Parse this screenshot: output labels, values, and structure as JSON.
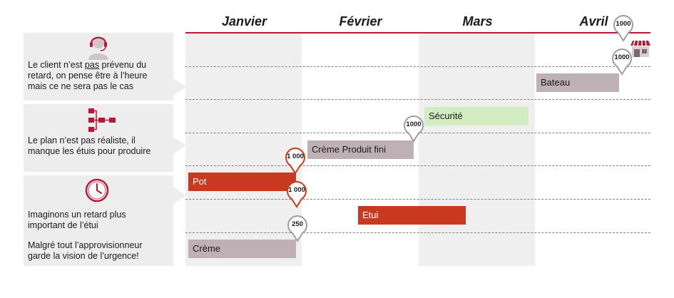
{
  "months": [
    "Janvier",
    "Février",
    "Mars",
    "Avril"
  ],
  "panels": [
    {
      "lines": [
        "Le client n’est pas prévenu du",
        "retard, on pense être à l’heure",
        "mais ce ne sera pas le cas"
      ],
      "underline_word": "pas",
      "icon": "support-agent-icon"
    },
    {
      "lines": [
        "Le plan n’est pas réaliste, il",
        "manque les étuis pour produire"
      ],
      "icon": "hierarchy-icon"
    },
    {
      "lines": [
        "Imaginons un retard plus",
        "important de l’étui"
      ],
      "lines2": [
        "Malgré tout l’approvisionneur",
        "garde la vision de l’urgence!"
      ],
      "icon": "clock-icon"
    }
  ],
  "bars": [
    {
      "label": "Bateau",
      "style": "grey"
    },
    {
      "label": "Sécurité",
      "style": "green"
    },
    {
      "label": "Crème Produit fini",
      "style": "grey"
    },
    {
      "label": "Pot",
      "style": "red"
    },
    {
      "label": "Etui",
      "style": "red"
    },
    {
      "label": "Crème",
      "style": "grey"
    }
  ],
  "pins": [
    {
      "value": "1000",
      "style": "grey"
    },
    {
      "value": "1000",
      "style": "grey"
    },
    {
      "value": "1000",
      "style": "grey"
    },
    {
      "value": "1 000",
      "style": "red"
    },
    {
      "value": "1 000",
      "style": "red"
    },
    {
      "value": "250",
      "style": "grey"
    }
  ],
  "store_icon": "shop-icon",
  "colors": {
    "accent": "#b5193a",
    "bar_red": "#c9391f",
    "bar_grey": "#bfb0b5",
    "bar_green": "#d3ecc2",
    "panel": "#ededed",
    "column": "#efefef"
  }
}
